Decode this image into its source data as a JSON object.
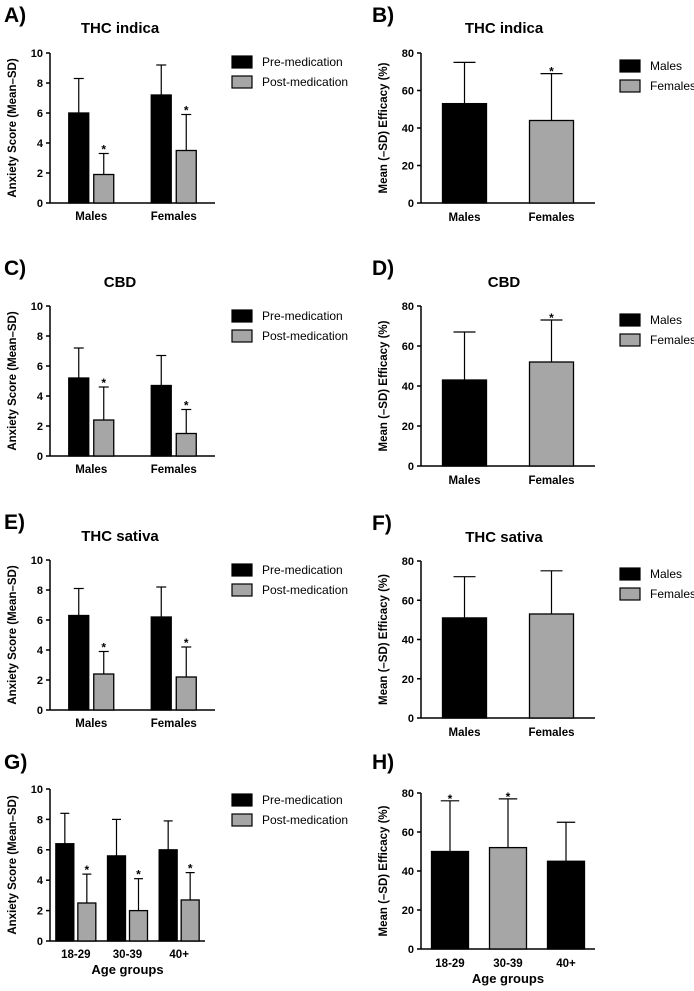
{
  "colors": {
    "pre": "#000000",
    "post": "#a6a6a6",
    "males": "#000000",
    "females": "#a6a6a6"
  },
  "chart_data": [
    {
      "panel": "A)",
      "type": "bar",
      "title": "THC indica",
      "ylabel": "Anxiety Score (Mean–SD)",
      "xlabel": "",
      "ylim": [
        0,
        10
      ],
      "yticks": [
        "0",
        "2",
        "4",
        "6",
        "8",
        "10"
      ],
      "categories": [
        "Males",
        "Females"
      ],
      "legend": [
        "Pre-medication",
        "Post-medication"
      ],
      "legend_position": "right",
      "series": [
        {
          "name": "Pre-medication",
          "values": [
            6.0,
            7.2
          ],
          "errors": [
            2.3,
            2.0
          ],
          "sig": [
            "",
            ""
          ]
        },
        {
          "name": "Post-medication",
          "values": [
            1.9,
            3.5
          ],
          "errors": [
            1.4,
            2.4
          ],
          "sig": [
            "*",
            "*"
          ]
        }
      ]
    },
    {
      "panel": "B)",
      "type": "bar",
      "title": "THC indica",
      "ylabel": "Mean (–SD) Efficacy (%)",
      "xlabel": "",
      "ylim": [
        0,
        80
      ],
      "yticks": [
        "0",
        "20",
        "40",
        "60",
        "80"
      ],
      "categories": [
        "Males",
        "Females"
      ],
      "legend": [
        "Males",
        "Females"
      ],
      "legend_position": "right",
      "values": [
        53,
        44
      ],
      "errors": [
        22,
        25
      ],
      "sig": [
        "",
        "*"
      ]
    },
    {
      "panel": "C)",
      "type": "bar",
      "title": "CBD",
      "ylabel": "Anxiety Score (Mean–SD)",
      "xlabel": "",
      "ylim": [
        0,
        10
      ],
      "yticks": [
        "0",
        "2",
        "4",
        "6",
        "8",
        "10"
      ],
      "categories": [
        "Males",
        "Females"
      ],
      "legend": [
        "Pre-medication",
        "Post-medication"
      ],
      "legend_position": "right",
      "series": [
        {
          "name": "Pre-medication",
          "values": [
            5.2,
            4.7
          ],
          "errors": [
            2.0,
            2.0
          ],
          "sig": [
            "",
            ""
          ]
        },
        {
          "name": "Post-medication",
          "values": [
            2.4,
            1.5
          ],
          "errors": [
            2.2,
            1.6
          ],
          "sig": [
            "*",
            "*"
          ]
        }
      ]
    },
    {
      "panel": "D)",
      "type": "bar",
      "title": "CBD",
      "ylabel": "Mean (–SD) Efficacy (%)",
      "xlabel": "",
      "ylim": [
        0,
        80
      ],
      "yticks": [
        "0",
        "20",
        "40",
        "60",
        "80"
      ],
      "categories": [
        "Males",
        "Females"
      ],
      "legend": [
        "Males",
        "Females"
      ],
      "legend_position": "right",
      "values": [
        43,
        52
      ],
      "errors": [
        24,
        21
      ],
      "sig": [
        "",
        "*"
      ]
    },
    {
      "panel": "E)",
      "type": "bar",
      "title": "THC sativa",
      "ylabel": "Anxiety Score (Mean–SD)",
      "xlabel": "",
      "ylim": [
        0,
        10
      ],
      "yticks": [
        "0",
        "2",
        "4",
        "6",
        "8",
        "10"
      ],
      "categories": [
        "Males",
        "Females"
      ],
      "legend": [
        "Pre-medication",
        "Post-medication"
      ],
      "legend_position": "right",
      "series": [
        {
          "name": "Pre-medication",
          "values": [
            6.3,
            6.2
          ],
          "errors": [
            1.8,
            2.0
          ],
          "sig": [
            "",
            ""
          ]
        },
        {
          "name": "Post-medication",
          "values": [
            2.4,
            2.2
          ],
          "errors": [
            1.5,
            2.0
          ],
          "sig": [
            "*",
            "*"
          ]
        }
      ]
    },
    {
      "panel": "F)",
      "type": "bar",
      "title": "THC sativa",
      "ylabel": "Mean (–SD) Efficacy (%)",
      "xlabel": "",
      "ylim": [
        0,
        80
      ],
      "yticks": [
        "0",
        "20",
        "40",
        "60",
        "80"
      ],
      "categories": [
        "Males",
        "Females"
      ],
      "legend": [
        "Males",
        "Females"
      ],
      "legend_position": "right",
      "values": [
        51,
        53
      ],
      "errors": [
        21,
        22
      ],
      "sig": [
        "",
        ""
      ]
    },
    {
      "panel": "G)",
      "type": "bar",
      "title": "",
      "ylabel": "Anxiety Score (Mean–SD)",
      "xlabel": "Age groups",
      "ylim": [
        0,
        10
      ],
      "yticks": [
        "0",
        "2",
        "4",
        "6",
        "8",
        "10"
      ],
      "categories": [
        "18-29",
        "30-39",
        "40+"
      ],
      "legend": [
        "Pre-medication",
        "Post-medication"
      ],
      "legend_position": "right",
      "series": [
        {
          "name": "Pre-medication",
          "values": [
            6.4,
            5.6,
            6.0
          ],
          "errors": [
            2.0,
            2.4,
            1.9
          ],
          "sig": [
            "",
            "",
            ""
          ]
        },
        {
          "name": "Post-medication",
          "values": [
            2.5,
            2.0,
            2.7
          ],
          "errors": [
            1.9,
            2.1,
            1.8
          ],
          "sig": [
            "*",
            "*",
            "*"
          ]
        }
      ]
    },
    {
      "panel": "H)",
      "type": "bar",
      "title": "",
      "ylabel": "Mean (–SD) Efficacy (%)",
      "xlabel": "Age groups",
      "ylim": [
        0,
        80
      ],
      "yticks": [
        "0",
        "20",
        "40",
        "60",
        "80"
      ],
      "categories": [
        "18-29",
        "30-39",
        "40+"
      ],
      "legend": [],
      "legend_position": "none",
      "values": [
        50,
        52,
        45
      ],
      "errors": [
        26,
        25,
        20
      ],
      "sig": [
        "*",
        "*",
        ""
      ],
      "bar_color_keys": [
        "males",
        "females",
        "males"
      ]
    }
  ]
}
